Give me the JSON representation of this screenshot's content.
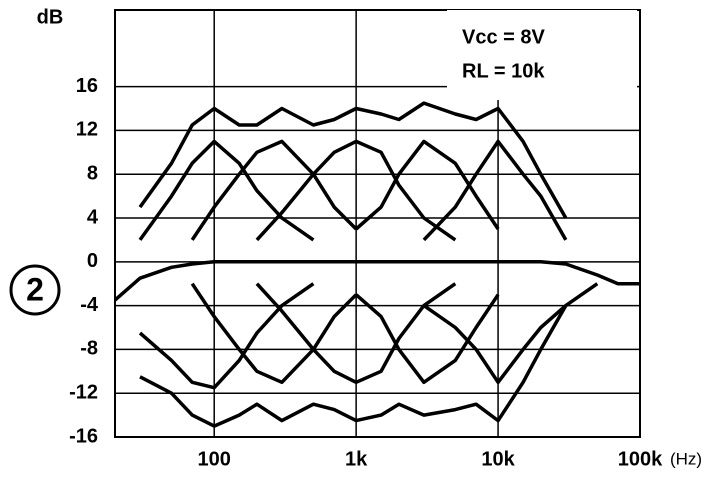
{
  "chart_data": {
    "type": "line",
    "y_label": "dB",
    "x_label": "(Hz)",
    "figure_label": "2",
    "annotations": [
      "Vcc = 8V",
      "RL = 10k"
    ],
    "log_x": true,
    "grid": true,
    "xlim": [
      20,
      100000
    ],
    "ylim": [
      -16,
      23
    ],
    "xticks": [
      100,
      {
        "value": 1000,
        "label": "1k"
      },
      {
        "value": 10000,
        "label": "10k"
      },
      {
        "value": 100000,
        "label": "100k"
      }
    ],
    "yticks": [
      -16,
      -12,
      -8,
      -4,
      0,
      4,
      8,
      12,
      16
    ],
    "x": [
      20,
      30,
      50,
      70,
      100,
      150,
      200,
      300,
      500,
      700,
      1000,
      1500,
      2000,
      3000,
      5000,
      7000,
      10000,
      15000,
      20000,
      30000,
      50000,
      70000,
      100000
    ],
    "series": [
      {
        "color": "#000000",
        "values": [
          null,
          5,
          9,
          12.5,
          14,
          12.5,
          12.5,
          14,
          12.5,
          13,
          14,
          13.5,
          13,
          14.5,
          13.5,
          13,
          14,
          11,
          8,
          4,
          null,
          null,
          null
        ]
      },
      {
        "color": "#000000",
        "values": [
          null,
          2,
          6,
          9,
          11,
          9,
          6.5,
          4,
          2,
          null,
          null,
          null,
          null,
          null,
          null,
          null,
          null,
          null,
          null,
          null,
          null,
          null,
          null
        ]
      },
      {
        "color": "#000000",
        "values": [
          null,
          null,
          null,
          2,
          5,
          8,
          10,
          11,
          8,
          5,
          3,
          null,
          null,
          null,
          null,
          null,
          null,
          null,
          null,
          null,
          null,
          null,
          null
        ]
      },
      {
        "color": "#000000",
        "values": [
          null,
          null,
          null,
          null,
          null,
          null,
          2,
          4.5,
          8,
          10,
          11,
          10,
          7,
          4,
          2,
          null,
          null,
          null,
          null,
          null,
          null,
          null,
          null
        ]
      },
      {
        "color": "#000000",
        "values": [
          null,
          null,
          null,
          null,
          null,
          null,
          null,
          null,
          null,
          null,
          3,
          5,
          8,
          11,
          9,
          6,
          3,
          null,
          null,
          null,
          null,
          null,
          null
        ]
      },
      {
        "color": "#000000",
        "values": [
          null,
          null,
          null,
          null,
          null,
          null,
          null,
          null,
          null,
          null,
          null,
          null,
          null,
          2,
          5,
          8,
          11,
          8,
          6,
          2,
          null,
          null,
          null
        ]
      },
      {
        "color": "#000000",
        "values": [
          -3.5,
          -1.5,
          -0.5,
          -0.2,
          0,
          0,
          0,
          0,
          0,
          0,
          0,
          0,
          0,
          0,
          0,
          0,
          0,
          0,
          0,
          -0.2,
          -1.2,
          -2,
          -2
        ]
      },
      {
        "color": "#000000",
        "values": [
          null,
          -6.5,
          -9,
          -11,
          -11.5,
          -9,
          -6.5,
          -4,
          -2,
          null,
          null,
          null,
          null,
          null,
          null,
          null,
          null,
          null,
          null,
          null,
          null,
          null,
          null
        ]
      },
      {
        "color": "#000000",
        "values": [
          null,
          null,
          null,
          -2,
          -5,
          -8,
          -10,
          -11,
          -8,
          -5,
          -3,
          null,
          null,
          null,
          null,
          null,
          null,
          null,
          null,
          null,
          null,
          null,
          null
        ]
      },
      {
        "color": "#000000",
        "values": [
          null,
          null,
          null,
          null,
          null,
          null,
          -2,
          -4.5,
          -8,
          -10,
          -11,
          -10,
          -7,
          -4,
          -2,
          null,
          null,
          null,
          null,
          null,
          null,
          null,
          null
        ]
      },
      {
        "color": "#000000",
        "values": [
          null,
          null,
          null,
          null,
          null,
          null,
          null,
          null,
          null,
          null,
          -3,
          -5,
          -8,
          -11,
          -9,
          -6,
          -3,
          null,
          null,
          null,
          null,
          null,
          null
        ]
      },
      {
        "color": "#000000",
        "values": [
          null,
          null,
          null,
          null,
          null,
          null,
          null,
          null,
          null,
          null,
          null,
          null,
          null,
          -4,
          -6,
          -8,
          -11,
          -8,
          -6,
          -4,
          null,
          null,
          null
        ]
      },
      {
        "color": "#000000",
        "values": [
          null,
          -10.5,
          -12,
          -14,
          -15,
          -14,
          -13,
          -14.5,
          -13,
          -13.5,
          -14.5,
          -14,
          -13,
          -14,
          -13.5,
          -13,
          -14.5,
          -11,
          -8,
          -4,
          -2,
          null,
          null
        ]
      }
    ]
  }
}
